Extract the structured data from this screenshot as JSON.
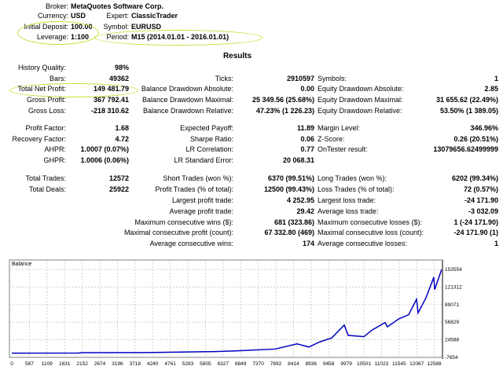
{
  "header": {
    "broker": {
      "label": "Broker:",
      "value": "MetaQuotes Software Corp."
    },
    "currency": {
      "label": "Currency:",
      "value": "USD"
    },
    "expert": {
      "label": "Expert:",
      "value": "ClassicTrader"
    },
    "initial_deposit": {
      "label": "Initial Deposit:",
      "value": "100.00"
    },
    "symbol": {
      "label": "Symbol:",
      "value": "EURUSD"
    },
    "leverage": {
      "label": "Leverage:",
      "value": "1:100"
    },
    "period": {
      "label": "Period:",
      "value": "M15 (2014.01.01 - 2016.01.01)"
    }
  },
  "results": {
    "title": "Results",
    "rows": [
      [
        {
          "label": "History Quality:",
          "value": "98%"
        },
        null,
        null
      ],
      [
        {
          "label": "Bars:",
          "value": "49362"
        },
        {
          "label": "Ticks:",
          "value": "2910597"
        },
        {
          "label": "Symbols:",
          "value": "1"
        }
      ],
      [
        {
          "label": "Total Net Profit:",
          "value": "149 481.79"
        },
        {
          "label": "Balance Drawdown Absolute:",
          "value": "0.00"
        },
        {
          "label": "Equity Drawdown Absolute:",
          "value": "2.85"
        }
      ],
      [
        {
          "label": "Gross Profit:",
          "value": "367 792.41"
        },
        {
          "label": "Balance Drawdown Maximal:",
          "value": "25 349.56 (25.68%)"
        },
        {
          "label": "Equity Drawdown Maximal:",
          "value": "31 655.62 (22.49%)"
        }
      ],
      [
        {
          "label": "Gross Loss:",
          "value": "-218 310.62"
        },
        {
          "label": "Balance Drawdown Relative:",
          "value": "47.23% (1 226.23)"
        },
        {
          "label": "Equity Drawdown Relative:",
          "value": "53.50% (1 389.05)"
        }
      ],
      [
        {
          "label": "Profit Factor:",
          "value": "1.68"
        },
        {
          "label": "Expected Payoff:",
          "value": "11.89"
        },
        {
          "label": "Margin Level:",
          "value": "346.96%"
        }
      ],
      [
        {
          "label": "Recovery Factor:",
          "value": "4.72"
        },
        {
          "label": "Sharpe Ratio:",
          "value": "0.06"
        },
        {
          "label": "Z-Score:",
          "value": "0.26 (20.51%)"
        }
      ],
      [
        {
          "label": "AHPR:",
          "value": "1.0007 (0.07%)"
        },
        {
          "label": "LR Correlation:",
          "value": "0.77"
        },
        {
          "label": "OnTester result:",
          "value": "13079656.62499999"
        }
      ],
      [
        {
          "label": "GHPR:",
          "value": "1.0006 (0.06%)"
        },
        {
          "label": "LR Standard Error:",
          "value": "20 068.31"
        },
        null
      ],
      [
        {
          "label": "Total Trades:",
          "value": "12572"
        },
        {
          "label": "Short Trades (won %):",
          "value": "6370 (99.51%)"
        },
        {
          "label": "Long Trades (won %):",
          "value": "6202 (99.34%)"
        }
      ],
      [
        {
          "label": "Total Deals:",
          "value": "25922"
        },
        {
          "label": "Profit Trades (% of total):",
          "value": "12500 (99.43%)"
        },
        {
          "label": "Loss Trades (% of total):",
          "value": "72 (0.57%)"
        }
      ],
      [
        null,
        {
          "label": "Largest profit trade:",
          "value": "4 252.95"
        },
        {
          "label": "Largest loss trade:",
          "value": "-24 171.90"
        }
      ],
      [
        null,
        {
          "label": "Average profit trade:",
          "value": "29.42"
        },
        {
          "label": "Average loss trade:",
          "value": "-3 032.09"
        }
      ],
      [
        null,
        {
          "label": "Maximum consecutive wins ($):",
          "value": "681 (323.86)"
        },
        {
          "label": "Maximum consecutive losses ($):",
          "value": "1 (-24 171.90)"
        }
      ],
      [
        null,
        {
          "label": "Maximal consecutive profit (count):",
          "value": "67 332.80 (469)"
        },
        {
          "label": "Maximal consecutive loss (count):",
          "value": "-24 171.90 (1)"
        }
      ],
      [
        null,
        {
          "label": "Average consecutive wins:",
          "value": "174"
        },
        {
          "label": "Average consecutive losses:",
          "value": "1"
        }
      ]
    ]
  },
  "chart_data": {
    "type": "line",
    "title": "Balance",
    "series": [
      {
        "name": "Balance",
        "color": "#0000c0",
        "x": [
          0,
          1972,
          2100,
          4000,
          4988,
          6000,
          6612,
          7772,
          8422,
          8770,
          9094,
          9442,
          9814,
          9930,
          10394,
          10626,
          11020,
          11090,
          11414,
          11716,
          11948,
          11994,
          12226,
          12458,
          12482,
          12690
        ],
        "y": [
          100,
          200,
          1000,
          1200,
          2000,
          3000,
          4300,
          7560,
          17100,
          11400,
          20800,
          27900,
          51600,
          32700,
          30300,
          42100,
          56300,
          48400,
          62600,
          70600,
          99000,
          74000,
          101400,
          139400,
          116600,
          153600
        ]
      }
    ],
    "xlim": [
      0,
      12714
    ],
    "ylim": [
      -7654,
      171000
    ],
    "x_ticks": [
      "0",
      "587",
      "1109",
      "1631",
      "2152",
      "2674",
      "3196",
      "3718",
      "4240",
      "4761",
      "5283",
      "5805",
      "6327",
      "6849",
      "7370",
      "7892",
      "8414",
      "8936",
      "9458",
      "9979",
      "10501",
      "11023",
      "11545",
      "12067",
      "12588"
    ],
    "y_ticks": [
      "153554",
      "121312",
      "89071",
      "56829",
      "24588",
      "-7654"
    ],
    "y_tick_values": [
      153554,
      121312,
      89071,
      56829,
      24588,
      -7654
    ],
    "grid": true
  }
}
